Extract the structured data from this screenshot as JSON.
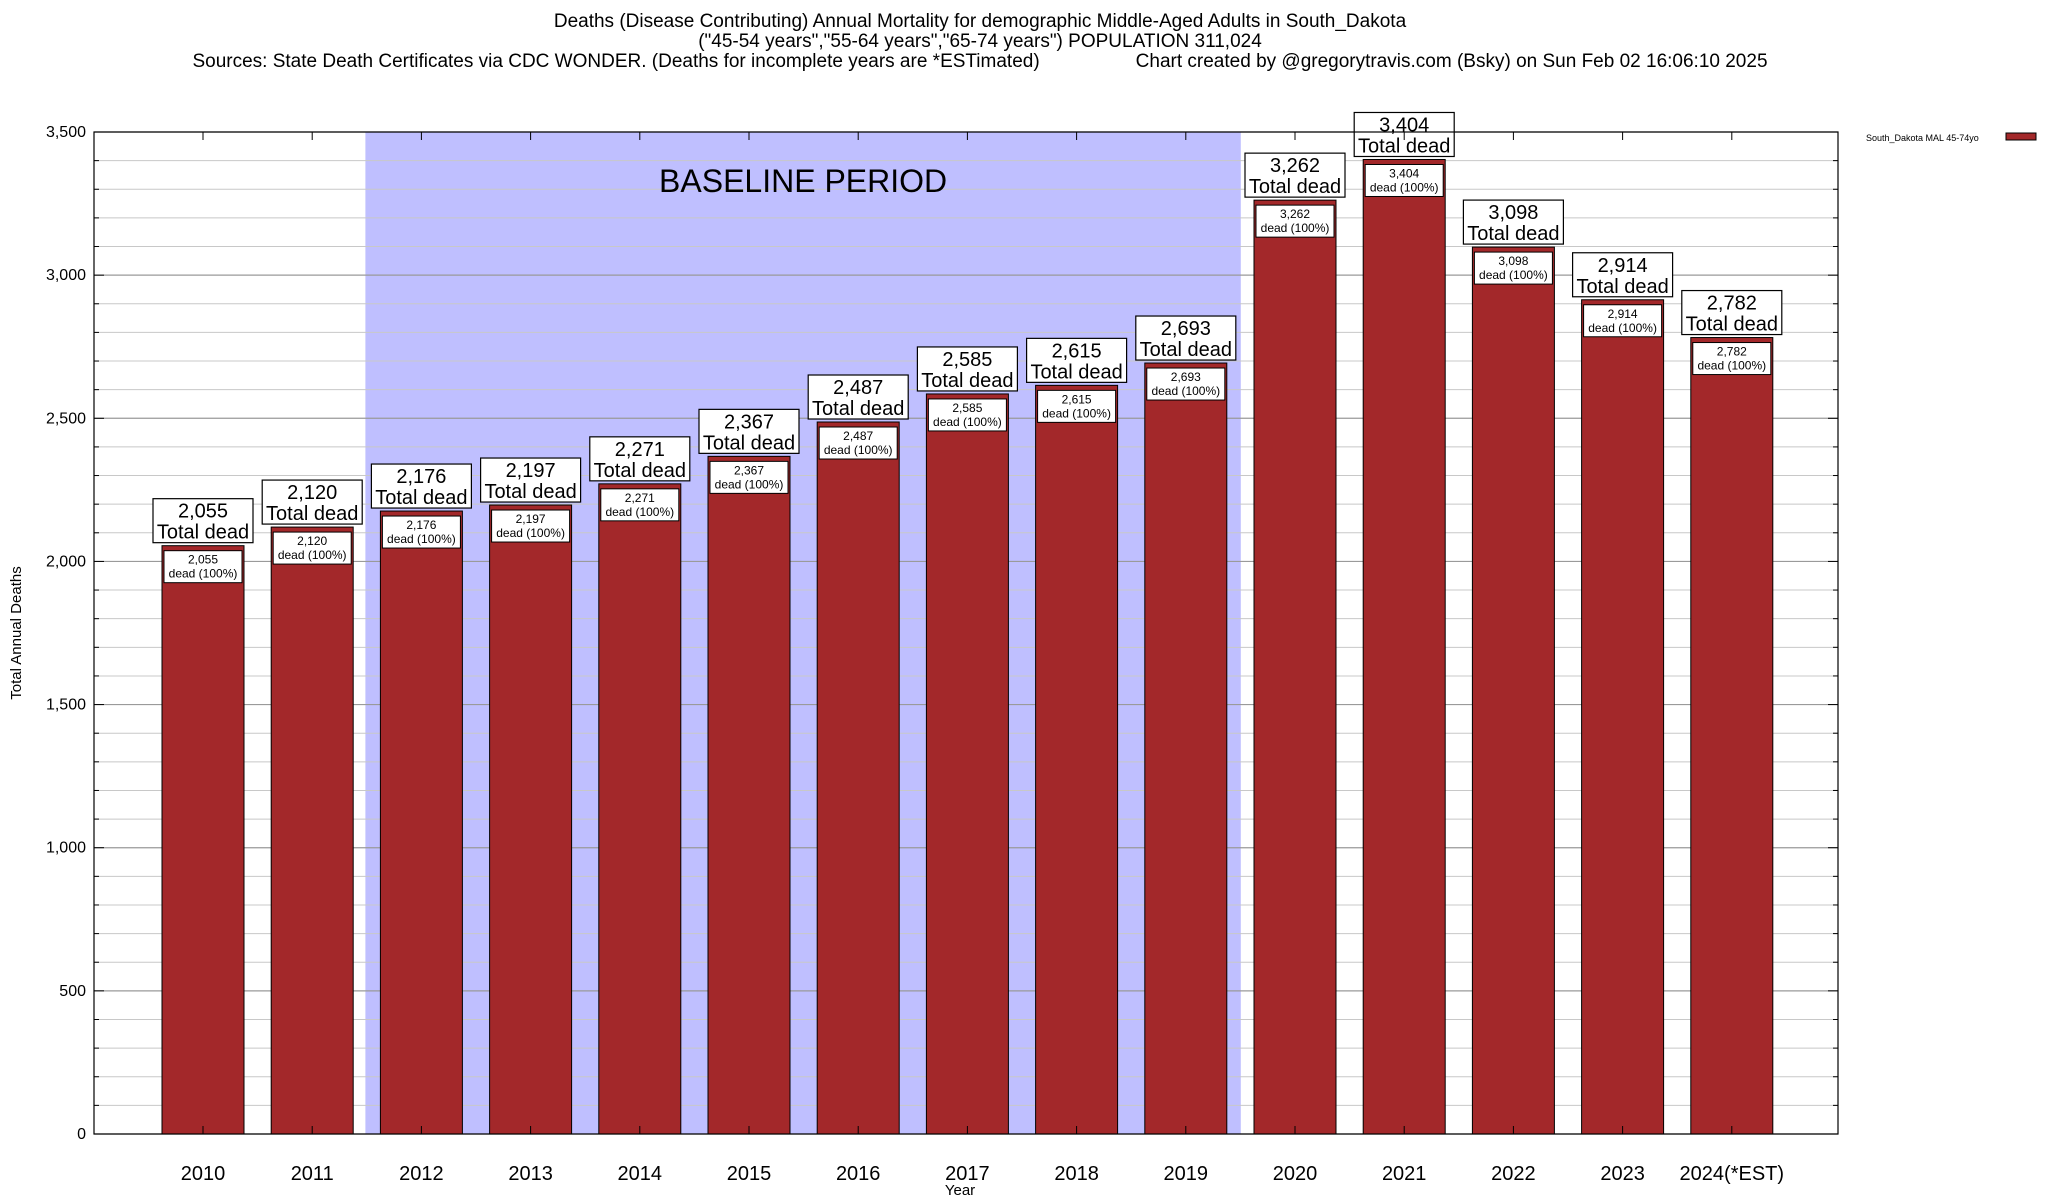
{
  "page": {
    "title": "Deaths (Disease Contributing) Annual Mortality for demographic Middle-Aged Adults in South_Dakota",
    "subtitle": "(\"45-54 years\",\"55-64 years\",\"65-74 years\") POPULATION 311,024",
    "sources": "Sources: State Death Certificates via CDC WONDER. (Deaths for incomplete years are *ESTimated)",
    "credit": "Chart created by @gregorytravis.com (Bsky) on Sun Feb 02 16:06:10 2025"
  },
  "chart_data": {
    "type": "bar",
    "title": "Deaths (Disease Contributing) Annual Mortality for demographic Middle-Aged Adults in South_Dakota",
    "xlabel": "Year",
    "ylabel": "Total Annual Deaths",
    "ylim": [
      0,
      3500
    ],
    "yticks": [
      0,
      500,
      1000,
      1500,
      2000,
      2500,
      3000,
      3500
    ],
    "ytick_labels": [
      "0",
      "500",
      "1,000",
      "1,500",
      "2,000",
      "2,500",
      "3,000",
      "3,500"
    ],
    "grid": true,
    "categories": [
      "2010",
      "2011",
      "2012",
      "2013",
      "2014",
      "2015",
      "2016",
      "2017",
      "2018",
      "2019",
      "2020",
      "2021",
      "2022",
      "2023",
      "2024(*EST)"
    ],
    "series": [
      {
        "name": "South_Dakota MAL 45-74yo",
        "color": "#A3282A",
        "values": [
          2055,
          2120,
          2176,
          2197,
          2271,
          2367,
          2487,
          2585,
          2615,
          2693,
          3262,
          3404,
          3098,
          2914,
          2782
        ]
      }
    ],
    "top_label_suffix": "Total dead",
    "inner_label_suffix": "dead (100%)",
    "shaded_region": {
      "label": "BASELINE PERIOD",
      "from_category": "2012",
      "to_category": "2019",
      "color": "#BFBFFF"
    },
    "legend": {
      "position": "top-right",
      "entries": [
        "South_Dakota MAL 45-74yo"
      ]
    }
  }
}
